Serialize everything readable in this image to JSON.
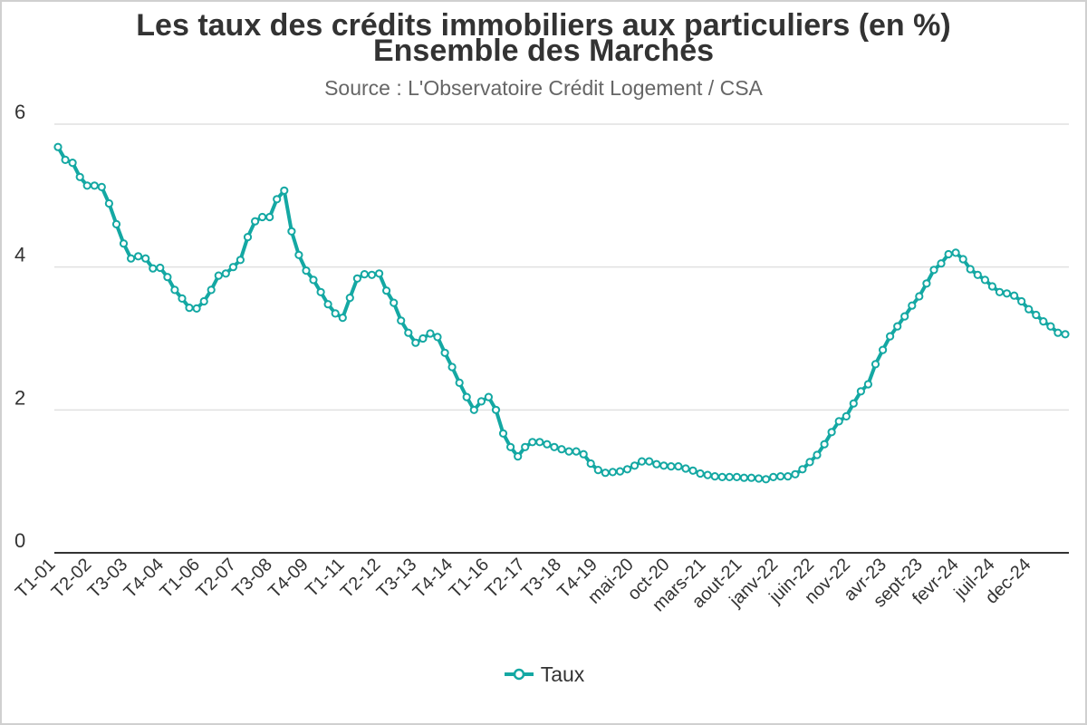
{
  "chart_data": {
    "type": "line",
    "title": "Les taux des crédits immobiliers aux particuliers (en %)",
    "subtitle_line2": "Ensemble des Marchés",
    "source": "Source : L'Observatoire Crédit Logement / CSA",
    "ylim": [
      0,
      6
    ],
    "yticks": [
      0,
      2,
      4,
      6
    ],
    "grid": true,
    "legend_position": "bottom",
    "series_color": "#14a8a3",
    "x_tick_labels": [
      "T1-01",
      "T2-02",
      "T3-03",
      "T4-04",
      "T1-06",
      "T2-07",
      "T3-08",
      "T4-09",
      "T1-11",
      "T2-12",
      "T3-13",
      "T4-14",
      "T1-16",
      "T2-17",
      "T3-18",
      "T4-19",
      "mai-20",
      "oct-20",
      "mars-21",
      "aout-21",
      "janv-22",
      "juin-22",
      "nov-22",
      "avr-23",
      "sept-23",
      "fevr-24",
      "juil-24",
      "dec-24"
    ],
    "series": [
      {
        "name": "Taux",
        "values": [
          5.68,
          5.5,
          5.46,
          5.26,
          5.14,
          5.14,
          5.12,
          4.89,
          4.6,
          4.33,
          4.12,
          4.15,
          4.12,
          3.98,
          3.99,
          3.86,
          3.68,
          3.56,
          3.43,
          3.42,
          3.52,
          3.68,
          3.88,
          3.91,
          4.0,
          4.1,
          4.42,
          4.64,
          4.7,
          4.7,
          4.95,
          5.07,
          4.5,
          4.17,
          3.95,
          3.82,
          3.65,
          3.48,
          3.35,
          3.29,
          3.57,
          3.84,
          3.9,
          3.89,
          3.91,
          3.67,
          3.5,
          3.25,
          3.08,
          2.94,
          3.0,
          3.07,
          3.02,
          2.8,
          2.6,
          2.38,
          2.18,
          2.0,
          2.12,
          2.18,
          2.0,
          1.67,
          1.48,
          1.35,
          1.48,
          1.55,
          1.55,
          1.52,
          1.48,
          1.45,
          1.42,
          1.42,
          1.38,
          1.25,
          1.16,
          1.12,
          1.13,
          1.14,
          1.17,
          1.22,
          1.28,
          1.28,
          1.24,
          1.22,
          1.21,
          1.21,
          1.18,
          1.15,
          1.11,
          1.09,
          1.07,
          1.06,
          1.06,
          1.06,
          1.05,
          1.05,
          1.04,
          1.03,
          1.06,
          1.07,
          1.07,
          1.1,
          1.17,
          1.27,
          1.37,
          1.52,
          1.69,
          1.84,
          1.91,
          2.09,
          2.26,
          2.36,
          2.64,
          2.84,
          3.03,
          3.17,
          3.31,
          3.46,
          3.59,
          3.77,
          3.96,
          4.05,
          4.18,
          4.2,
          4.11,
          3.97,
          3.89,
          3.82,
          3.73,
          3.65,
          3.63,
          3.6,
          3.52,
          3.41,
          3.33,
          3.24,
          3.17,
          3.08,
          3.06
        ]
      }
    ]
  }
}
